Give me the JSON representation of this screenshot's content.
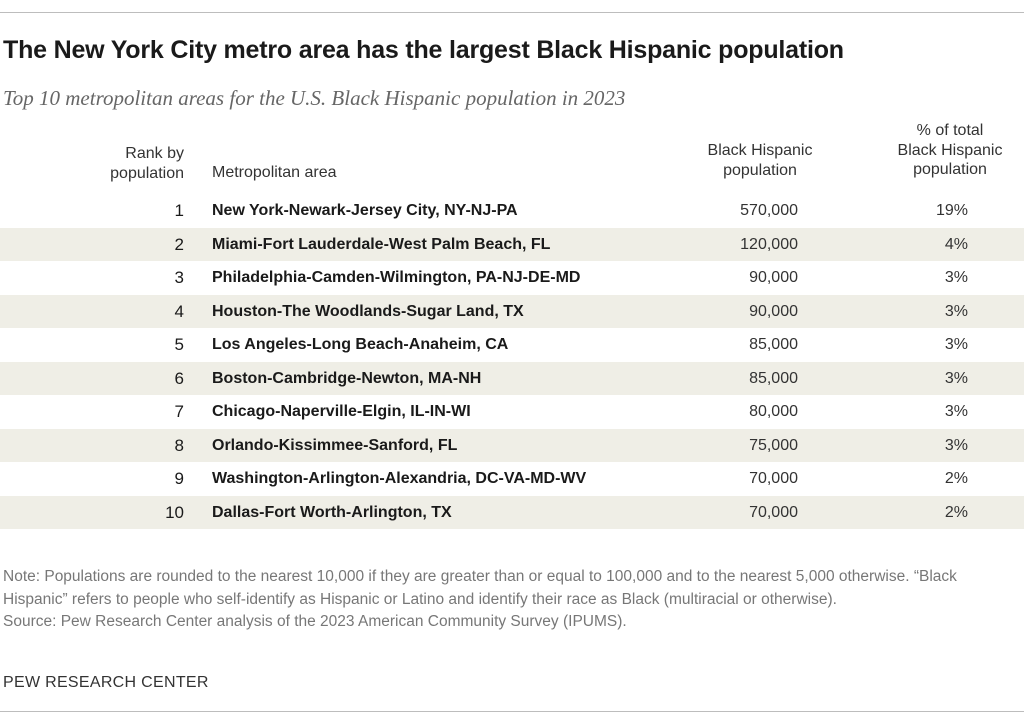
{
  "title": "The New York City metro area has the largest Black Hispanic population",
  "subtitle": "Top 10 metropolitan areas for the U.S. Black Hispanic population in 2023",
  "headers": {
    "rank": [
      "Rank by",
      "population"
    ],
    "area": "Metropolitan area",
    "population": [
      "Black Hispanic",
      "population"
    ],
    "percent": [
      "% of total",
      "Black Hispanic",
      "population"
    ]
  },
  "chart_data": {
    "type": "table",
    "title": "The New York City metro area has the largest Black Hispanic population",
    "subtitle": "Top 10 metropolitan areas for the U.S. Black Hispanic population in 2023",
    "columns": [
      "Rank by population",
      "Metropolitan area",
      "Black Hispanic population",
      "% of total Black Hispanic population"
    ],
    "rows": [
      {
        "rank": "1",
        "area": "New York-Newark-Jersey City, NY-NJ-PA",
        "population": "570,000",
        "percent": "19%"
      },
      {
        "rank": "2",
        "area": "Miami-Fort Lauderdale-West Palm Beach, FL",
        "population": "120,000",
        "percent": "4%"
      },
      {
        "rank": "3",
        "area": "Philadelphia-Camden-Wilmington, PA-NJ-DE-MD",
        "population": "90,000",
        "percent": "3%"
      },
      {
        "rank": "4",
        "area": "Houston-The Woodlands-Sugar Land, TX",
        "population": "90,000",
        "percent": "3%"
      },
      {
        "rank": "5",
        "area": "Los Angeles-Long Beach-Anaheim, CA",
        "population": "85,000",
        "percent": "3%"
      },
      {
        "rank": "6",
        "area": "Boston-Cambridge-Newton, MA-NH",
        "population": "85,000",
        "percent": "3%"
      },
      {
        "rank": "7",
        "area": "Chicago-Naperville-Elgin, IL-IN-WI",
        "population": "80,000",
        "percent": "3%"
      },
      {
        "rank": "8",
        "area": "Orlando-Kissimmee-Sanford, FL",
        "population": "75,000",
        "percent": "3%"
      },
      {
        "rank": "9",
        "area": "Washington-Arlington-Alexandria, DC-VA-MD-WV",
        "population": "70,000",
        "percent": "2%"
      },
      {
        "rank": "10",
        "area": "Dallas-Fort Worth-Arlington, TX",
        "population": "70,000",
        "percent": "2%"
      }
    ]
  },
  "note": "Note: Populations are rounded to the nearest 10,000 if they are greater than or equal to 100,000 and to the nearest 5,000 otherwise. “Black Hispanic” refers to people who self-identify as Hispanic or Latino and identify their race as Black (multiracial or otherwise).",
  "source": "Source: Pew Research Center analysis of the 2023 American Community Survey (IPUMS).",
  "brand": "PEW RESEARCH CENTER",
  "colors": {
    "shade": "#efeee6",
    "subtitle": "#666666",
    "note": "#777777"
  }
}
